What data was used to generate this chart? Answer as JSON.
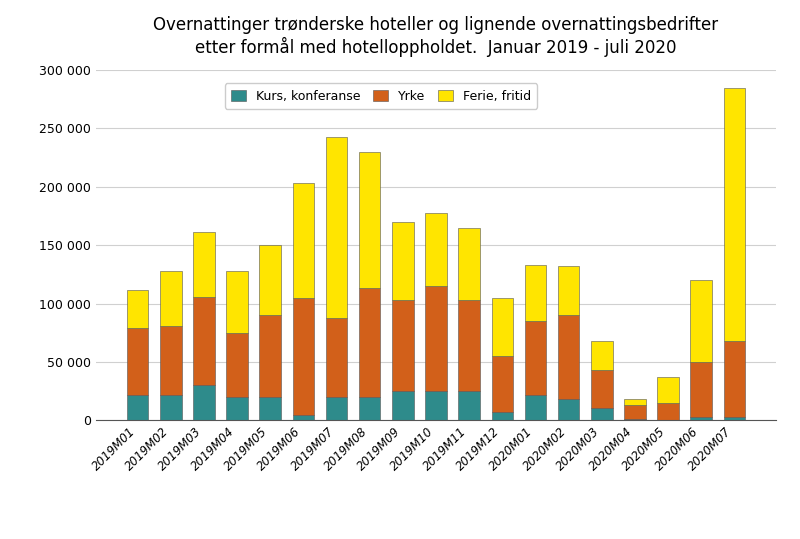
{
  "title": "Overnattinger trønderske hoteller og lignende overnattingsbedrifter\netter formål med hotelloppholdet.  Januar 2019 - juli 2020",
  "categories": [
    "2019M01",
    "2019M02",
    "2019M03",
    "2019M04",
    "2019M05",
    "2019M06",
    "2019M07",
    "2019M08",
    "2019M09",
    "2019M10",
    "2019M11",
    "2019M12",
    "2020M01",
    "2020M02",
    "2020M03",
    "2020M04",
    "2020M05",
    "2020M06",
    "2020M07"
  ],
  "kurs": [
    22000,
    22000,
    30000,
    20000,
    20000,
    5000,
    20000,
    20000,
    25000,
    25000,
    25000,
    7000,
    22000,
    18000,
    11000,
    1000,
    0,
    3000,
    3000
  ],
  "yrke": [
    57000,
    59000,
    76000,
    55000,
    70000,
    100000,
    68000,
    93000,
    78000,
    90000,
    78000,
    48000,
    63000,
    72000,
    32000,
    12000,
    15000,
    47000,
    65000
  ],
  "ferie": [
    33000,
    47000,
    55000,
    53000,
    60000,
    98000,
    155000,
    117000,
    67000,
    63000,
    62000,
    50000,
    48000,
    42000,
    25000,
    5000,
    22000,
    70000,
    217000
  ],
  "colors": {
    "kurs": "#2E8B8B",
    "yrke": "#D2601A",
    "ferie": "#FFE500"
  },
  "legend_labels": [
    "Kurs, konferanse",
    "Yrke",
    "Ferie, fritid"
  ],
  "ylim": [
    0,
    300000
  ],
  "yticks": [
    0,
    50000,
    100000,
    150000,
    200000,
    250000,
    300000
  ],
  "background_color": "#ffffff",
  "grid_color": "#d0d0d0",
  "title_fontsize": 12,
  "figsize": [
    8.0,
    5.39
  ],
  "bar_edge_color": "#555555",
  "bar_edge_width": 0.4
}
